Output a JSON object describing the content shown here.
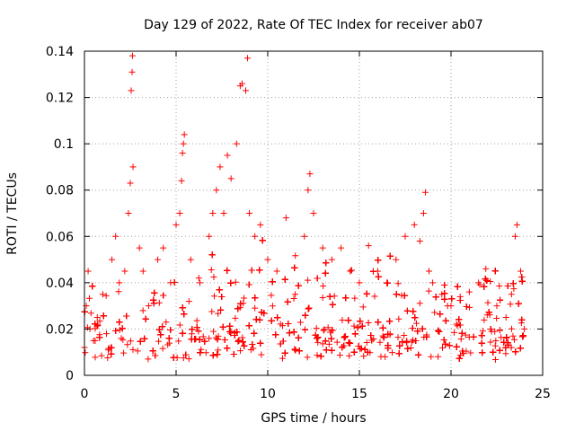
{
  "chart_data": {
    "type": "scatter",
    "title": "Day 129 of 2022, Rate Of TEC Index for receiver ab07",
    "xlabel": "GPS time / hours",
    "ylabel": "ROTI / TECUs",
    "xlim": [
      0,
      25
    ],
    "ylim": [
      0,
      0.14
    ],
    "x_ticks": [
      0,
      5,
      10,
      15,
      20,
      25
    ],
    "y_ticks": [
      0,
      0.02,
      0.04,
      0.06,
      0.08,
      0.1,
      0.12,
      0.14
    ],
    "x_tick_labels": [
      "0",
      "5",
      "10",
      "15",
      "20",
      "25"
    ],
    "y_tick_labels": [
      "0",
      "0.02",
      "0.04",
      "0.06",
      "0.08",
      "0.1",
      "0.12",
      "0.14"
    ],
    "grid": true,
    "marker": "+",
    "color": "#ff0000",
    "x_range_of_data": [
      0,
      24
    ],
    "series": [
      {
        "points": [
          [
            0.0,
            0.012
          ],
          [
            0.1,
            0.03
          ],
          [
            0.2,
            0.045
          ],
          [
            0.3,
            0.02
          ],
          [
            0.5,
            0.015
          ],
          [
            0.7,
            0.025
          ],
          [
            1.0,
            0.035
          ],
          [
            1.2,
            0.018
          ],
          [
            1.5,
            0.05
          ],
          [
            1.7,
            0.06
          ],
          [
            1.9,
            0.04
          ],
          [
            2.2,
            0.045
          ],
          [
            2.4,
            0.07
          ],
          [
            2.5,
            0.083
          ],
          [
            2.55,
            0.123
          ],
          [
            2.6,
            0.131
          ],
          [
            2.62,
            0.138
          ],
          [
            2.65,
            0.09
          ],
          [
            3.0,
            0.055
          ],
          [
            3.2,
            0.045
          ],
          [
            3.5,
            0.03
          ],
          [
            4.0,
            0.05
          ],
          [
            4.3,
            0.055
          ],
          [
            4.7,
            0.04
          ],
          [
            5.0,
            0.065
          ],
          [
            5.2,
            0.07
          ],
          [
            5.3,
            0.084
          ],
          [
            5.35,
            0.096
          ],
          [
            5.4,
            0.1
          ],
          [
            5.45,
            0.104
          ],
          [
            5.8,
            0.05
          ],
          [
            6.3,
            0.04
          ],
          [
            6.8,
            0.06
          ],
          [
            7.0,
            0.07
          ],
          [
            7.2,
            0.08
          ],
          [
            7.4,
            0.09
          ],
          [
            7.6,
            0.07
          ],
          [
            7.8,
            0.095
          ],
          [
            8.0,
            0.085
          ],
          [
            8.3,
            0.1
          ],
          [
            8.5,
            0.125
          ],
          [
            8.6,
            0.126
          ],
          [
            8.8,
            0.123
          ],
          [
            8.9,
            0.137
          ],
          [
            9.0,
            0.07
          ],
          [
            9.3,
            0.06
          ],
          [
            9.6,
            0.065
          ],
          [
            10.0,
            0.05
          ],
          [
            10.5,
            0.045
          ],
          [
            11.0,
            0.068
          ],
          [
            11.5,
            0.035
          ],
          [
            12.0,
            0.06
          ],
          [
            12.2,
            0.08
          ],
          [
            12.3,
            0.087
          ],
          [
            12.5,
            0.07
          ],
          [
            13.0,
            0.055
          ],
          [
            13.5,
            0.05
          ],
          [
            14.0,
            0.055
          ],
          [
            14.5,
            0.045
          ],
          [
            15.0,
            0.04
          ],
          [
            15.5,
            0.056
          ],
          [
            16.0,
            0.045
          ],
          [
            16.5,
            0.04
          ],
          [
            17.0,
            0.05
          ],
          [
            17.5,
            0.06
          ],
          [
            18.0,
            0.065
          ],
          [
            18.3,
            0.058
          ],
          [
            18.5,
            0.07
          ],
          [
            18.6,
            0.079
          ],
          [
            18.8,
            0.045
          ],
          [
            19.0,
            0.04
          ],
          [
            19.5,
            0.035
          ],
          [
            20.0,
            0.03
          ],
          [
            20.5,
            0.034
          ],
          [
            21.0,
            0.036
          ],
          [
            21.5,
            0.04
          ],
          [
            21.9,
            0.046
          ],
          [
            22.5,
            0.03
          ],
          [
            23.0,
            0.025
          ],
          [
            23.3,
            0.035
          ],
          [
            23.5,
            0.06
          ],
          [
            23.6,
            0.065
          ],
          [
            23.8,
            0.045
          ],
          [
            24.0,
            0.02
          ]
        ]
      }
    ]
  }
}
